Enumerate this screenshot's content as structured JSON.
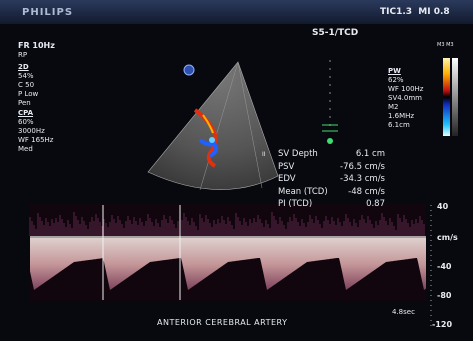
{
  "header": {
    "brand": "PHILIPS",
    "indices": "TIC1.3  MI 0.8",
    "probe": "S5-1/TCD",
    "map_label": "M3 M3"
  },
  "left_panel": {
    "top": [
      "FR 10Hz",
      "RP"
    ],
    "sections": [
      {
        "heading": "2D",
        "lines": [
          "54%",
          "C 50",
          "P Low",
          "Pen"
        ]
      },
      {
        "heading": "CPA",
        "lines": [
          "60%",
          "3000Hz",
          "WF 165Hz",
          "Med"
        ]
      }
    ]
  },
  "right_panel": {
    "heading": "PW",
    "lines": [
      "62%",
      "WF 100Hz",
      "SV4.0mm",
      "M2",
      "1.6MHz",
      "6.1cm"
    ]
  },
  "marker": "II",
  "measurements": [
    {
      "label": "SV Depth",
      "value": "6.1 cm"
    },
    {
      "label": "PSV",
      "value": "-76.5 cm/s"
    },
    {
      "label": "EDV",
      "value": "-34.3 cm/s"
    },
    {
      "label": "Mean (TCD)",
      "value": "-48 cm/s"
    },
    {
      "label": "PI (TCD)",
      "value": "0.87"
    }
  ],
  "scale": [
    "40",
    "cm/s",
    "-40",
    "-80",
    "-120"
  ],
  "vessel": "ANTERIOR CEREBRAL ARTERY",
  "sweep": "4.8sec"
}
